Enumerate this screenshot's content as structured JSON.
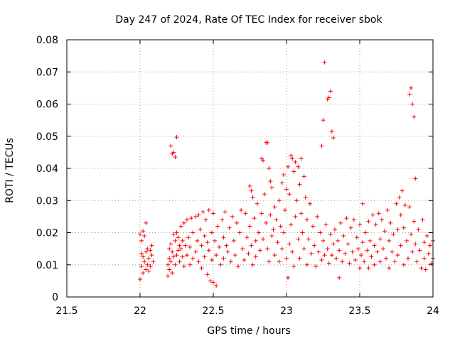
{
  "chart_data": {
    "type": "scatter",
    "title": "Day 247 of 2024, Rate Of TEC Index for receiver sbok",
    "xlabel": "GPS time / hours",
    "ylabel": "ROTI / TECUs",
    "xlim": [
      21.5,
      24
    ],
    "ylim": [
      0,
      0.08
    ],
    "xticks": [
      "21.5",
      "22",
      "22.5",
      "23",
      "23.5",
      "24"
    ],
    "yticks": [
      "0",
      "0.01",
      "0.02",
      "0.03",
      "0.04",
      "0.05",
      "0.06",
      "0.07",
      "0.08"
    ],
    "grid": true,
    "marker": "+",
    "color": "#ff0000",
    "series": [
      {
        "points": [
          [
            22.0,
            0.0055
          ],
          [
            22.0,
            0.0195
          ],
          [
            22.01,
            0.0175
          ],
          [
            22.01,
            0.0135
          ],
          [
            22.01,
            0.0095
          ],
          [
            22.02,
            0.0205
          ],
          [
            22.02,
            0.0125
          ],
          [
            22.02,
            0.0075
          ],
          [
            22.03,
            0.019
          ],
          [
            22.03,
            0.011
          ],
          [
            22.04,
            0.023
          ],
          [
            22.04,
            0.014
          ],
          [
            22.04,
            0.0085
          ],
          [
            22.05,
            0.015
          ],
          [
            22.05,
            0.01
          ],
          [
            22.06,
            0.012
          ],
          [
            22.06,
            0.008
          ],
          [
            22.07,
            0.0145
          ],
          [
            22.07,
            0.0095
          ],
          [
            22.08,
            0.013
          ],
          [
            22.08,
            0.016
          ],
          [
            22.09,
            0.011
          ],
          [
            22.19,
            0.01
          ],
          [
            22.19,
            0.0065
          ],
          [
            22.2,
            0.015
          ],
          [
            22.2,
            0.012
          ],
          [
            22.2,
            0.0085
          ],
          [
            22.21,
            0.047
          ],
          [
            22.21,
            0.0165
          ],
          [
            22.21,
            0.011
          ],
          [
            22.22,
            0.0445
          ],
          [
            22.22,
            0.014
          ],
          [
            22.22,
            0.0075
          ],
          [
            22.23,
            0.045
          ],
          [
            22.23,
            0.0195
          ],
          [
            22.23,
            0.0125
          ],
          [
            22.24,
            0.0435
          ],
          [
            22.24,
            0.0175
          ],
          [
            22.24,
            0.01
          ],
          [
            22.25,
            0.0497
          ],
          [
            22.25,
            0.02
          ],
          [
            22.25,
            0.013
          ],
          [
            22.26,
            0.0185
          ],
          [
            22.26,
            0.0145
          ],
          [
            22.27,
            0.016
          ],
          [
            22.27,
            0.011
          ],
          [
            22.28,
            0.022
          ],
          [
            22.28,
            0.015
          ],
          [
            22.29,
            0.0175
          ],
          [
            22.29,
            0.0125
          ],
          [
            22.3,
            0.023
          ],
          [
            22.3,
            0.0095
          ],
          [
            22.31,
            0.016
          ],
          [
            22.32,
            0.024
          ],
          [
            22.32,
            0.013
          ],
          [
            22.33,
            0.0185
          ],
          [
            22.34,
            0.0155
          ],
          [
            22.34,
            0.01
          ],
          [
            22.35,
            0.0245
          ],
          [
            22.36,
            0.02
          ],
          [
            22.36,
            0.012
          ],
          [
            22.38,
            0.025
          ],
          [
            22.38,
            0.014
          ],
          [
            22.39,
            0.0175
          ],
          [
            22.4,
            0.0255
          ],
          [
            22.4,
            0.011
          ],
          [
            22.41,
            0.021
          ],
          [
            22.42,
            0.016
          ],
          [
            22.42,
            0.009
          ],
          [
            22.43,
            0.0265
          ],
          [
            22.44,
            0.019
          ],
          [
            22.44,
            0.0125
          ],
          [
            22.45,
            0.024
          ],
          [
            22.46,
            0.017
          ],
          [
            22.46,
            0.007
          ],
          [
            22.47,
            0.027
          ],
          [
            22.47,
            0.0145
          ],
          [
            22.48,
            0.005
          ],
          [
            22.49,
            0.02
          ],
          [
            22.49,
            0.0115
          ],
          [
            22.5,
            0.026
          ],
          [
            22.5,
            0.0045
          ],
          [
            22.51,
            0.0175
          ],
          [
            22.52,
            0.013
          ],
          [
            22.52,
            0.0035
          ],
          [
            22.53,
            0.022
          ],
          [
            22.54,
            0.0155
          ],
          [
            22.55,
            0.01
          ],
          [
            22.56,
            0.024
          ],
          [
            22.57,
            0.0185
          ],
          [
            22.57,
            0.012
          ],
          [
            22.58,
            0.0265
          ],
          [
            22.59,
            0.016
          ],
          [
            22.6,
            0.014
          ],
          [
            22.61,
            0.0215
          ],
          [
            22.62,
            0.011
          ],
          [
            22.63,
            0.025
          ],
          [
            22.64,
            0.0175
          ],
          [
            22.65,
            0.013
          ],
          [
            22.66,
            0.023
          ],
          [
            22.67,
            0.0095
          ],
          [
            22.68,
            0.02
          ],
          [
            22.69,
            0.027
          ],
          [
            22.7,
            0.015
          ],
          [
            22.71,
            0.0115
          ],
          [
            22.72,
            0.026
          ],
          [
            22.73,
            0.0185
          ],
          [
            22.74,
            0.0135
          ],
          [
            22.75,
            0.0345
          ],
          [
            22.75,
            0.022
          ],
          [
            22.76,
            0.033
          ],
          [
            22.76,
            0.016
          ],
          [
            22.77,
            0.031
          ],
          [
            22.77,
            0.01
          ],
          [
            22.78,
            0.0245
          ],
          [
            22.79,
            0.0175
          ],
          [
            22.79,
            0.0125
          ],
          [
            22.8,
            0.029
          ],
          [
            22.81,
            0.02
          ],
          [
            22.82,
            0.0145
          ],
          [
            22.83,
            0.043
          ],
          [
            22.83,
            0.026
          ],
          [
            22.84,
            0.0425
          ],
          [
            22.84,
            0.018
          ],
          [
            22.85,
            0.032
          ],
          [
            22.86,
            0.048
          ],
          [
            22.86,
            0.023
          ],
          [
            22.87,
            0.048
          ],
          [
            22.87,
            0.015
          ],
          [
            22.88,
            0.04
          ],
          [
            22.88,
            0.011
          ],
          [
            22.89,
            0.036
          ],
          [
            22.89,
            0.0255
          ],
          [
            22.9,
            0.034
          ],
          [
            22.9,
            0.019
          ],
          [
            22.91,
            0.021
          ],
          [
            22.92,
            0.028
          ],
          [
            22.92,
            0.013
          ],
          [
            22.93,
            0.024
          ],
          [
            22.94,
            0.017
          ],
          [
            22.95,
            0.03
          ],
          [
            22.95,
            0.011
          ],
          [
            22.96,
            0.022
          ],
          [
            22.97,
            0.0355
          ],
          [
            22.97,
            0.015
          ],
          [
            22.98,
            0.038
          ],
          [
            22.98,
            0.02
          ],
          [
            22.99,
            0.027
          ],
          [
            23.0,
            0.0335
          ],
          [
            23.0,
            0.012
          ],
          [
            23.01,
            0.0405
          ],
          [
            23.01,
            0.006
          ],
          [
            23.02,
            0.032
          ],
          [
            23.02,
            0.0165
          ],
          [
            23.03,
            0.044
          ],
          [
            23.03,
            0.0225
          ],
          [
            23.04,
            0.043
          ],
          [
            23.04,
            0.014
          ],
          [
            23.05,
            0.039
          ],
          [
            23.05,
            0.0095
          ],
          [
            23.06,
            0.042
          ],
          [
            23.06,
            0.025
          ],
          [
            23.07,
            0.03
          ],
          [
            23.08,
            0.0405
          ],
          [
            23.08,
            0.018
          ],
          [
            23.09,
            0.035
          ],
          [
            23.09,
            0.012
          ],
          [
            23.1,
            0.043
          ],
          [
            23.1,
            0.026
          ],
          [
            23.11,
            0.02
          ],
          [
            23.12,
            0.0375
          ],
          [
            23.12,
            0.015
          ],
          [
            23.13,
            0.031
          ],
          [
            23.14,
            0.024
          ],
          [
            23.14,
            0.01
          ],
          [
            23.15,
            0.018
          ],
          [
            23.16,
            0.029
          ],
          [
            23.17,
            0.0135
          ],
          [
            23.18,
            0.022
          ],
          [
            23.19,
            0.016
          ],
          [
            23.2,
            0.0095
          ],
          [
            23.21,
            0.025
          ],
          [
            23.22,
            0.014
          ],
          [
            23.23,
            0.02
          ],
          [
            23.24,
            0.047
          ],
          [
            23.24,
            0.0115
          ],
          [
            23.25,
            0.055
          ],
          [
            23.25,
            0.0175
          ],
          [
            23.26,
            0.073
          ],
          [
            23.26,
            0.013
          ],
          [
            23.27,
            0.0225
          ],
          [
            23.28,
            0.0615
          ],
          [
            23.28,
            0.015
          ],
          [
            23.29,
            0.062
          ],
          [
            23.29,
            0.0105
          ],
          [
            23.3,
            0.064
          ],
          [
            23.3,
            0.0195
          ],
          [
            23.31,
            0.0515
          ],
          [
            23.31,
            0.013
          ],
          [
            23.32,
            0.0495
          ],
          [
            23.32,
            0.0165
          ],
          [
            23.33,
            0.021
          ],
          [
            23.34,
            0.012
          ],
          [
            23.35,
            0.0175
          ],
          [
            23.36,
            0.006
          ],
          [
            23.36,
            0.0145
          ],
          [
            23.37,
            0.023
          ],
          [
            23.38,
            0.011
          ],
          [
            23.39,
            0.019
          ],
          [
            23.4,
            0.0135
          ],
          [
            23.41,
            0.0245
          ],
          [
            23.42,
            0.0165
          ],
          [
            23.43,
            0.0105
          ],
          [
            23.44,
            0.0215
          ],
          [
            23.45,
            0.014
          ],
          [
            23.46,
            0.024
          ],
          [
            23.47,
            0.0115
          ],
          [
            23.48,
            0.0185
          ],
          [
            23.49,
            0.015
          ],
          [
            23.5,
            0.0225
          ],
          [
            23.5,
            0.009
          ],
          [
            23.51,
            0.013
          ],
          [
            23.52,
            0.029
          ],
          [
            23.52,
            0.017
          ],
          [
            23.53,
            0.011
          ],
          [
            23.54,
            0.02
          ],
          [
            23.55,
            0.0145
          ],
          [
            23.56,
            0.0235
          ],
          [
            23.56,
            0.009
          ],
          [
            23.57,
            0.0175
          ],
          [
            23.58,
            0.0125
          ],
          [
            23.59,
            0.0255
          ],
          [
            23.6,
            0.016
          ],
          [
            23.6,
            0.01
          ],
          [
            23.61,
            0.0225
          ],
          [
            23.62,
            0.014
          ],
          [
            23.63,
            0.026
          ],
          [
            23.64,
            0.018
          ],
          [
            23.64,
            0.011
          ],
          [
            23.65,
            0.024
          ],
          [
            23.66,
            0.015
          ],
          [
            23.67,
            0.0205
          ],
          [
            23.68,
            0.012
          ],
          [
            23.69,
            0.027
          ],
          [
            23.7,
            0.0175
          ],
          [
            23.7,
            0.009
          ],
          [
            23.71,
            0.023
          ],
          [
            23.72,
            0.014
          ],
          [
            23.73,
            0.0195
          ],
          [
            23.74,
            0.011
          ],
          [
            23.75,
            0.029
          ],
          [
            23.76,
            0.021
          ],
          [
            23.76,
            0.013
          ],
          [
            23.77,
            0.031
          ],
          [
            23.78,
            0.0255
          ],
          [
            23.78,
            0.016
          ],
          [
            23.79,
            0.033
          ],
          [
            23.8,
            0.0215
          ],
          [
            23.8,
            0.01
          ],
          [
            23.81,
            0.0285
          ],
          [
            23.82,
            0.0175
          ],
          [
            23.83,
            0.012
          ],
          [
            23.84,
            0.028
          ],
          [
            23.84,
            0.063
          ],
          [
            23.85,
            0.065
          ],
          [
            23.85,
            0.0195
          ],
          [
            23.86,
            0.06
          ],
          [
            23.86,
            0.014
          ],
          [
            23.87,
            0.056
          ],
          [
            23.87,
            0.0235
          ],
          [
            23.88,
            0.0368
          ],
          [
            23.88,
            0.0165
          ],
          [
            23.89,
            0.011
          ],
          [
            23.9,
            0.021
          ],
          [
            23.91,
            0.0145
          ],
          [
            23.92,
            0.009
          ],
          [
            23.93,
            0.024
          ],
          [
            23.94,
            0.017
          ],
          [
            23.94,
            0.012
          ],
          [
            23.95,
            0.0085
          ],
          [
            23.96,
            0.019
          ],
          [
            23.97,
            0.0135
          ],
          [
            23.98,
            0.016
          ],
          [
            23.99,
            0.0105
          ],
          [
            24.0,
            0.0175
          ],
          [
            24.0,
            0.012
          ]
        ]
      }
    ]
  }
}
